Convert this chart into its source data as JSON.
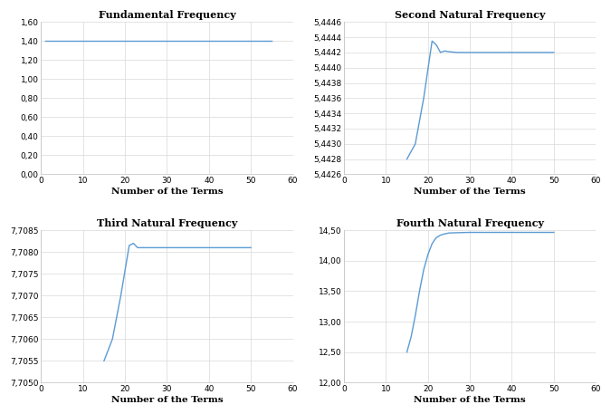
{
  "subplot1": {
    "title": "Fundamental Frequency",
    "xlabel": "Number of the Terms",
    "xlim": [
      0,
      60
    ],
    "xticks": [
      0,
      10,
      20,
      30,
      40,
      50,
      60
    ],
    "ylim": [
      0.0,
      1.6
    ],
    "yticks": [
      0.0,
      0.2,
      0.4,
      0.6,
      0.8,
      1.0,
      1.2,
      1.4,
      1.6
    ],
    "ytick_labels": [
      "0,00",
      "0,20",
      "0,40",
      "0,60",
      "0,80",
      "1,00",
      "1,20",
      "1,40",
      "1,60"
    ],
    "xtick_labels": [
      "0",
      "10",
      "20",
      "30",
      "40",
      "50",
      "60"
    ],
    "x_data": [
      1,
      5,
      10,
      15,
      20,
      25,
      30,
      35,
      40,
      45,
      50,
      55
    ],
    "y_data": [
      1.4049,
      1.4049,
      1.4049,
      1.4049,
      1.4049,
      1.4049,
      1.4049,
      1.4049,
      1.4049,
      1.4049,
      1.4049,
      1.4049
    ]
  },
  "subplot2": {
    "title": "Second Natural Frequency",
    "xlabel": "Number of the Terms",
    "xlim": [
      0,
      60
    ],
    "xticks": [
      0,
      10,
      20,
      30,
      40,
      50,
      60
    ],
    "ylim": [
      5.4426,
      5.4446
    ],
    "yticks": [
      5.4426,
      5.4428,
      5.443,
      5.4432,
      5.4434,
      5.4436,
      5.4438,
      5.444,
      5.4442,
      5.4444,
      5.4446
    ],
    "ytick_labels": [
      "5,4426",
      "5,4428",
      "5,4430",
      "5,4432",
      "5,4434",
      "5,4436",
      "5,4438",
      "5,4440",
      "5,4442",
      "5,4444",
      "5,4446"
    ],
    "xtick_labels": [
      "0",
      "10",
      "20",
      "30",
      "40",
      "50",
      "60"
    ],
    "x_data": [
      15,
      17,
      19,
      21,
      22,
      23,
      24,
      25,
      27,
      30,
      35,
      40,
      45,
      50
    ],
    "y_data": [
      5.4428,
      5.443,
      5.4436,
      5.44435,
      5.4443,
      5.4442,
      5.44422,
      5.44421,
      5.4442,
      5.4442,
      5.4442,
      5.4442,
      5.4442,
      5.4442
    ]
  },
  "subplot3": {
    "title": "Third Natural Frequency",
    "xlabel": "Number of the Terms",
    "xlim": [
      0,
      60
    ],
    "xticks": [
      0,
      10,
      20,
      30,
      40,
      50,
      60
    ],
    "ylim": [
      7.705,
      7.7085
    ],
    "yticks": [
      7.705,
      7.7055,
      7.706,
      7.7065,
      7.707,
      7.7075,
      7.708,
      7.7085
    ],
    "ytick_labels": [
      "7,7050",
      "7,7055",
      "7,7060",
      "7,7065",
      "7,7070",
      "7,7075",
      "7,7080",
      "7,7085"
    ],
    "xtick_labels": [
      "0",
      "10",
      "20",
      "30",
      "40",
      "50",
      "60"
    ],
    "x_data": [
      15,
      17,
      19,
      21,
      22,
      23,
      25,
      27,
      30,
      35,
      40,
      45,
      50
    ],
    "y_data": [
      7.7055,
      7.706,
      7.707,
      7.70815,
      7.7082,
      7.7081,
      7.7081,
      7.7081,
      7.7081,
      7.7081,
      7.7081,
      7.7081,
      7.7081
    ]
  },
  "subplot4": {
    "title": "Fourth Natural Frequency",
    "xlabel": "Number of the Terms",
    "xlim": [
      0,
      60
    ],
    "xticks": [
      0,
      10,
      20,
      30,
      40,
      50,
      60
    ],
    "ylim": [
      12.0,
      14.5
    ],
    "yticks": [
      12.0,
      12.5,
      13.0,
      13.5,
      14.0,
      14.5
    ],
    "ytick_labels": [
      "12,00",
      "12,50",
      "13,00",
      "13,50",
      "14,00",
      "14,50"
    ],
    "xtick_labels": [
      "0",
      "10",
      "20",
      "30",
      "40",
      "50",
      "60"
    ],
    "x_data": [
      15,
      16,
      17,
      18,
      19,
      20,
      21,
      22,
      23,
      24,
      25,
      27,
      30,
      35,
      40,
      45,
      50
    ],
    "y_data": [
      12.5,
      12.75,
      13.1,
      13.5,
      13.85,
      14.1,
      14.28,
      14.38,
      14.42,
      14.44,
      14.455,
      14.46,
      14.465,
      14.465,
      14.465,
      14.465,
      14.465
    ]
  },
  "line_color": "#5b9bd5",
  "grid_color": "#d9d9d9",
  "title_fontsize": 8,
  "label_fontsize": 7.5,
  "tick_fontsize": 6.5
}
